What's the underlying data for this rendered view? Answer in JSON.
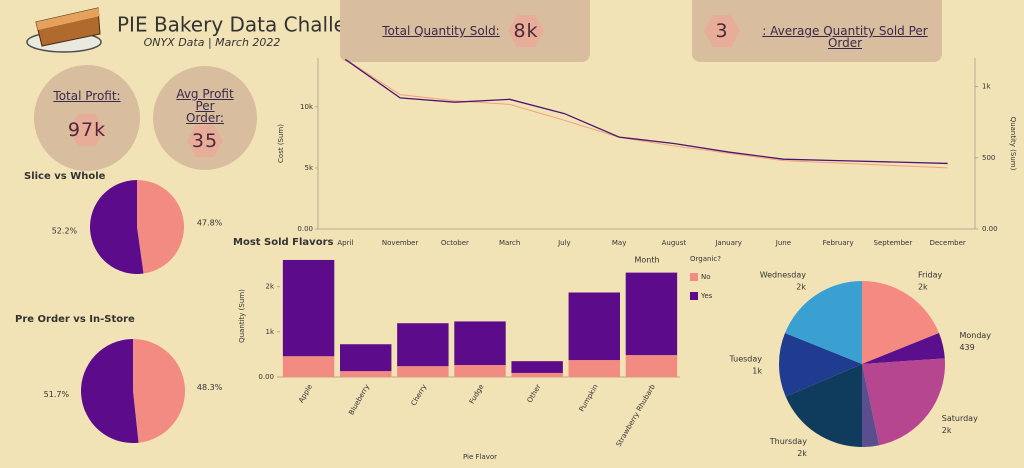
{
  "header": {
    "title": "PIE Bakery Data Challenge",
    "subtitle": "ONYX Data | March 2022"
  },
  "kpis": [
    {
      "label": "Total Quantity Sold:",
      "value": "8k"
    },
    {
      "label": ": Average Quantity Sold Per Order",
      "value": "3"
    },
    {
      "label": "Total Profit:",
      "value": "97k"
    },
    {
      "label": "Avg Profit Per Order:",
      "value": "35"
    }
  ],
  "chart_data": [
    {
      "type": "line",
      "x_label": "Month",
      "y_label": "Cost (Sum)",
      "y2_label": "Quantity (Sum)",
      "categories": [
        "April",
        "November",
        "October",
        "March",
        "July",
        "May",
        "August",
        "January",
        "June",
        "February",
        "September",
        "December"
      ],
      "series": [
        {
          "color": "#f4a07a",
          "values": [
            13900,
            11000,
            10500,
            10200,
            8900,
            7500,
            6800,
            6200,
            5600,
            5400,
            5200,
            5000
          ]
        },
        {
          "color": "#4b1672",
          "axis": "y2",
          "values": [
            1190,
            920,
            890,
            910,
            810,
            645,
            600,
            540,
            490,
            480,
            470,
            460
          ]
        }
      ],
      "ylim": [
        0,
        14000
      ],
      "yticks": [
        {
          "value": 0,
          "label": "0.00"
        },
        {
          "value": 5000,
          "label": "5k"
        },
        {
          "value": 10000,
          "label": "10k"
        }
      ],
      "y2lim": [
        0,
        1200
      ],
      "y2ticks": [
        {
          "value": 0,
          "label": "0.00"
        },
        500,
        {
          "value": 1000,
          "label": "1k"
        }
      ],
      "grid": false
    },
    {
      "type": "bar",
      "stacked": true,
      "title": "Most Sold Flavors",
      "x_label": "Pie Flavor",
      "y_label": "Quantity (Sum)",
      "legend_title": "Organic?",
      "legend": "right",
      "categories": [
        "Apple",
        "Blueberry",
        "Cherry",
        "Fudge",
        "Other",
        "Pumpkin",
        "Strawberry Rhubarb"
      ],
      "series": [
        {
          "name": "No",
          "color": "#f28b82",
          "values": [
            460,
            130,
            240,
            265,
            90,
            375,
            485
          ]
        },
        {
          "name": "Yes",
          "color": "#5c0b8a",
          "values": [
            2130,
            595,
            950,
            965,
            260,
            1495,
            1825
          ]
        }
      ],
      "ylim": [
        0,
        2700
      ],
      "yticks": [
        {
          "value": 0,
          "label": "0.00"
        },
        {
          "value": 1000,
          "label": "1k"
        },
        {
          "value": 2000,
          "label": "2k"
        }
      ],
      "grid": false
    },
    {
      "type": "pie",
      "title": "Slice vs Whole",
      "values": [
        47.8,
        52.2
      ],
      "value_labels": [
        "47.8%",
        "52.2%"
      ],
      "colors": [
        "#f28b82",
        "#5c0b8a"
      ]
    },
    {
      "type": "pie",
      "title": "Pre Order vs In-Store",
      "values": [
        48.3,
        51.7
      ],
      "value_labels": [
        "48.3%",
        "51.7%"
      ],
      "colors": [
        "#f28b82",
        "#5c0b8a"
      ]
    },
    {
      "type": "pie",
      "categories": [
        "Friday",
        "Monday",
        "Saturday",
        null,
        "Thursday",
        "Tuesday",
        "Wednesday"
      ],
      "values": [
        1660,
        439,
        2000,
        290,
        1630,
        1100,
        1660
      ],
      "value_labels": [
        "2k",
        "439",
        "2k",
        null,
        "2k",
        "1k",
        "2k"
      ],
      "colors": [
        "#f48a82",
        "#5a0f8c",
        "#b5468f",
        "#5b4e8f",
        "#0f3b5c",
        "#1f3c91",
        "#3aa0d2"
      ]
    }
  ]
}
